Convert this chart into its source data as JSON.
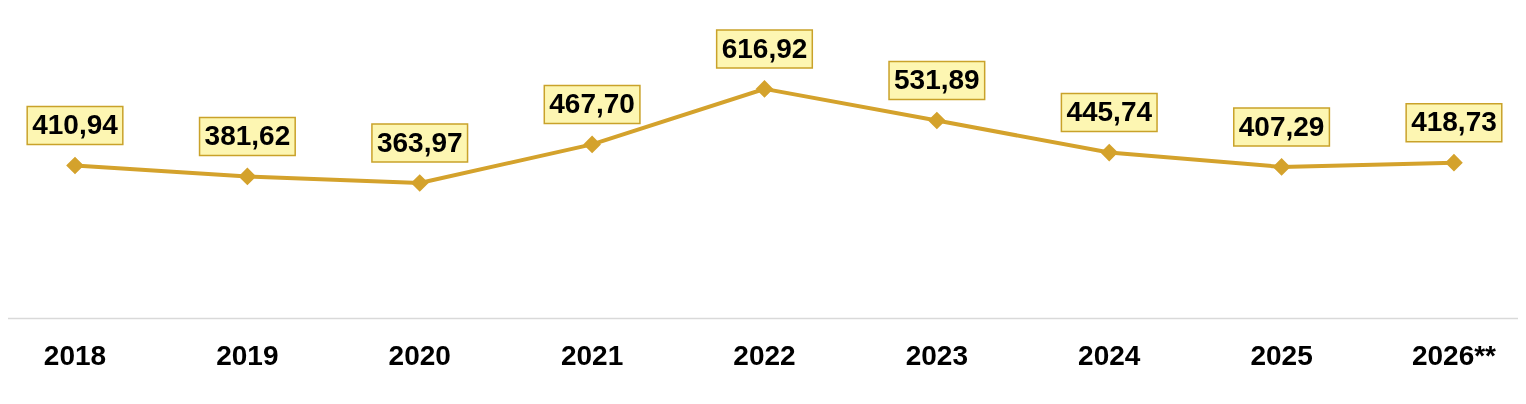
{
  "chart_data": {
    "type": "line",
    "categories": [
      "2018",
      "2019",
      "2020",
      "2021",
      "2022",
      "2023",
      "2024",
      "2025",
      "2026**"
    ],
    "series": [
      {
        "color": "#d4a22c",
        "values": [
          410.94,
          381.62,
          363.97,
          467.7,
          616.92,
          531.89,
          445.74,
          407.29,
          418.73
        ],
        "value_labels": [
          "410,94",
          "381,62",
          "363,97",
          "467,70",
          "616,92",
          "531,89",
          "445,74",
          "407,29",
          "418,73"
        ]
      }
    ],
    "grid": false,
    "legend": false,
    "marker": "diamond",
    "line_style": "solid"
  }
}
